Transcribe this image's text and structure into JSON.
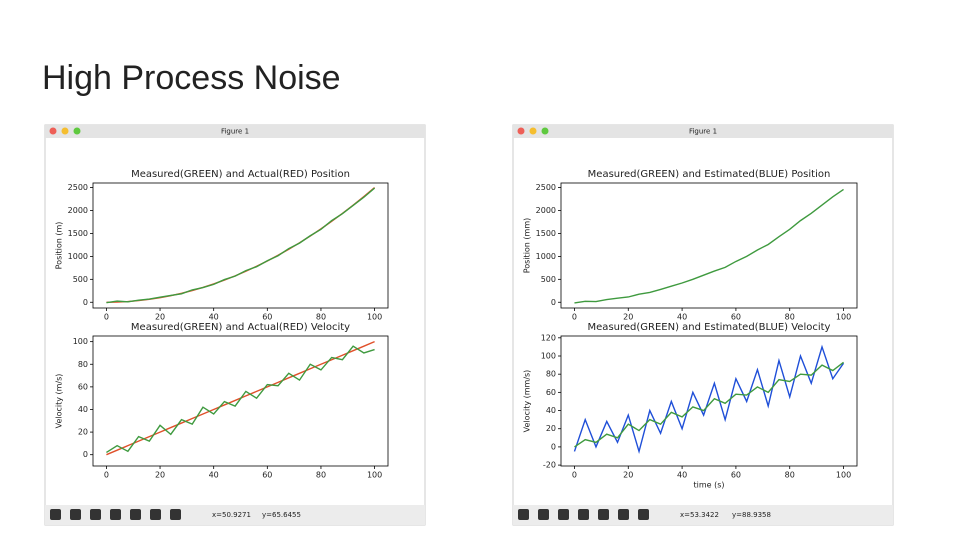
{
  "slide": {
    "title": "High Process Noise"
  },
  "windows": [
    {
      "title": "Figure 1",
      "status_x": "x=50.9271",
      "status_y": "y=65.6455"
    },
    {
      "title": "Figure 1",
      "status_x": "x=53.3422",
      "status_y": "y=88.9358"
    }
  ],
  "chart_data": [
    {
      "type": "line",
      "title": "Measured(GREEN) and Actual(RED) Position",
      "ylabel": "Position (m)",
      "x": [
        0,
        4,
        8,
        12,
        16,
        20,
        24,
        28,
        32,
        36,
        40,
        44,
        48,
        52,
        56,
        60,
        64,
        68,
        72,
        76,
        80,
        84,
        88,
        92,
        96,
        100
      ],
      "series": [
        {
          "name": "Actual",
          "color": "#e0502a",
          "values": [
            0,
            4,
            16,
            36,
            64,
            100,
            144,
            196,
            256,
            324,
            400,
            484,
            576,
            676,
            784,
            900,
            1024,
            1156,
            1296,
            1444,
            1600,
            1764,
            1936,
            2116,
            2304,
            2500
          ]
        },
        {
          "name": "Measured",
          "color": "#3f9a3f",
          "values": [
            -10,
            25,
            10,
            45,
            70,
            110,
            150,
            185,
            270,
            320,
            390,
            495,
            570,
            690,
            775,
            905,
            1015,
            1170,
            1290,
            1450,
            1590,
            1780,
            1930,
            2110,
            2290,
            2490
          ]
        }
      ],
      "xlim": [
        -5,
        105
      ],
      "ylim": [
        -125,
        2600
      ],
      "xticks": [
        0,
        20,
        40,
        60,
        80,
        100
      ],
      "yticks": [
        0,
        500,
        1000,
        1500,
        2000,
        2500
      ]
    },
    {
      "type": "line",
      "title": "Measured(GREEN) and Actual(RED) Velocity",
      "ylabel": "Velocity (m/s)",
      "x": [
        0,
        4,
        8,
        12,
        16,
        20,
        24,
        28,
        32,
        36,
        40,
        44,
        48,
        52,
        56,
        60,
        64,
        68,
        72,
        76,
        80,
        84,
        88,
        92,
        96,
        100
      ],
      "series": [
        {
          "name": "Actual",
          "color": "#e0502a",
          "values": [
            0,
            4,
            8,
            12,
            16,
            20,
            24,
            28,
            32,
            36,
            40,
            44,
            48,
            52,
            56,
            60,
            64,
            68,
            72,
            76,
            80,
            84,
            88,
            92,
            96,
            100
          ]
        },
        {
          "name": "Measured",
          "color": "#3f9a3f",
          "values": [
            2,
            8,
            3,
            16,
            12,
            26,
            18,
            31,
            27,
            42,
            36,
            47,
            43,
            56,
            50,
            62,
            61,
            72,
            66,
            80,
            75,
            86,
            84,
            96,
            90,
            93
          ]
        }
      ],
      "xlim": [
        -5,
        105
      ],
      "ylim": [
        -10,
        105
      ],
      "xticks": [
        0,
        20,
        40,
        60,
        80,
        100
      ],
      "yticks": [
        0,
        20,
        40,
        60,
        80,
        100
      ]
    },
    {
      "type": "line",
      "title": "Measured(GREEN) and Estimated(BLUE) Position",
      "ylabel": "Position (mm)",
      "x": [
        0,
        4,
        8,
        12,
        16,
        20,
        24,
        28,
        32,
        36,
        40,
        44,
        48,
        52,
        56,
        60,
        64,
        68,
        72,
        76,
        80,
        84,
        88,
        92,
        96,
        100
      ],
      "series": [
        {
          "name": "Measured",
          "color": "#3f9a3f",
          "values": [
            -15,
            20,
            15,
            60,
            90,
            115,
            175,
            215,
            280,
            350,
            420,
            500,
            590,
            680,
            760,
            890,
            1000,
            1140,
            1260,
            1430,
            1590,
            1780,
            1940,
            2120,
            2300,
            2460
          ]
        }
      ],
      "xlim": [
        -5,
        105
      ],
      "ylim": [
        -125,
        2600
      ],
      "xticks": [
        0,
        20,
        40,
        60,
        80,
        100
      ],
      "yticks": [
        0,
        500,
        1000,
        1500,
        2000,
        2500
      ]
    },
    {
      "type": "line",
      "title": "Measured(GREEN) and Estimated(BLUE) Velocity",
      "ylabel": "Velocity (mm/s)",
      "xlabel": "time (s)",
      "x": [
        0,
        4,
        8,
        12,
        16,
        20,
        24,
        28,
        32,
        36,
        40,
        44,
        48,
        52,
        56,
        60,
        64,
        68,
        72,
        76,
        80,
        84,
        88,
        92,
        96,
        100
      ],
      "series": [
        {
          "name": "Estimated",
          "color": "#1f4fd8",
          "values": [
            -5,
            30,
            0,
            28,
            5,
            35,
            -5,
            40,
            15,
            50,
            20,
            60,
            35,
            70,
            30,
            75,
            50,
            85,
            45,
            95,
            55,
            100,
            70,
            110,
            75,
            92
          ]
        },
        {
          "name": "Measured",
          "color": "#3f9a3f",
          "values": [
            0,
            8,
            5,
            14,
            10,
            25,
            18,
            30,
            25,
            38,
            33,
            44,
            40,
            53,
            48,
            58,
            57,
            66,
            60,
            74,
            72,
            80,
            79,
            90,
            84,
            93
          ]
        }
      ],
      "xlim": [
        -5,
        105
      ],
      "ylim": [
        -21,
        122
      ],
      "xticks": [
        0,
        20,
        40,
        60,
        80,
        100
      ],
      "yticks": [
        -20,
        0,
        20,
        40,
        60,
        80,
        100,
        120
      ]
    }
  ]
}
